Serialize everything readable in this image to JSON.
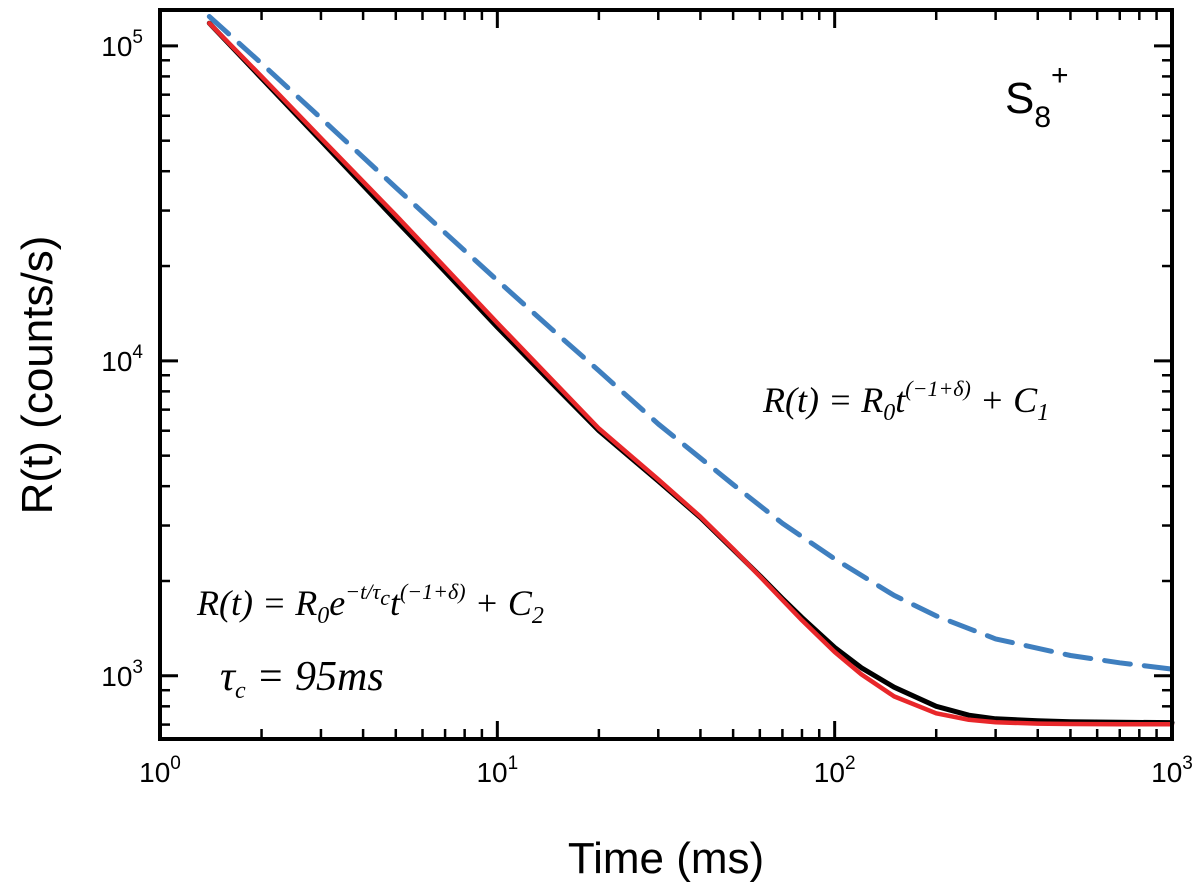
{
  "chart_data": {
    "type": "line",
    "x_scale": "log",
    "y_scale": "log",
    "xlim": [
      1,
      1000
    ],
    "ylim": [
      630,
      130000
    ],
    "xlabel": "Time (ms)",
    "ylabel": "R(t) (counts/s)",
    "x_ticks": [
      {
        "base": "10",
        "exp": "0",
        "value": 1
      },
      {
        "base": "10",
        "exp": "1",
        "value": 10
      },
      {
        "base": "10",
        "exp": "2",
        "value": 100
      },
      {
        "base": "10",
        "exp": "3",
        "value": 1000
      }
    ],
    "y_ticks": [
      {
        "base": "10",
        "exp": "3",
        "value": 1000
      },
      {
        "base": "10",
        "exp": "4",
        "value": 10000
      },
      {
        "base": "10",
        "exp": "5",
        "value": 100000
      }
    ],
    "species_label": {
      "main": "S",
      "sub": "8",
      "sup": "+"
    },
    "series": [
      {
        "kind": "measured",
        "color": "#000000",
        "x": [
          1.4,
          2,
          3,
          5,
          7,
          10,
          15,
          20,
          30,
          40,
          50,
          60,
          70,
          80,
          100,
          120,
          150,
          200,
          250,
          300,
          400,
          500,
          700,
          1000
        ],
        "y": [
          118000,
          79000,
          50000,
          28000,
          19200,
          12800,
          8200,
          6000,
          4150,
          3180,
          2520,
          2080,
          1760,
          1530,
          1230,
          1060,
          920,
          800,
          750,
          730,
          720,
          715,
          712,
          710
        ]
      },
      {
        "kind": "fit",
        "color": "#e8272a",
        "x": [
          1.4,
          2,
          3,
          5,
          7,
          10,
          15,
          20,
          30,
          40,
          50,
          60,
          70,
          80,
          100,
          120,
          150,
          200,
          250,
          300,
          400,
          500,
          700,
          1000
        ],
        "y": [
          118000,
          80000,
          51000,
          29000,
          19800,
          13200,
          8400,
          6100,
          4200,
          3200,
          2530,
          2070,
          1740,
          1500,
          1190,
          1010,
          860,
          760,
          725,
          712,
          705,
          703,
          702,
          702
        ]
      },
      {
        "kind": "power-law",
        "color": "#3f7fbf",
        "x": [
          1.4,
          2,
          3,
          5,
          7,
          10,
          15,
          20,
          30,
          50,
          70,
          100,
          150,
          200,
          300,
          500,
          700,
          1000
        ],
        "y": [
          124000,
          88000,
          59000,
          35500,
          25500,
          18000,
          12200,
          9300,
          6300,
          4050,
          3050,
          2350,
          1800,
          1550,
          1310,
          1160,
          1100,
          1050
        ]
      }
    ],
    "annotations": {
      "eq1": {
        "lhs": "R(t) = R",
        "r_sub": "0",
        "t": "t",
        "exponent": "(−1+δ)",
        "plus": " + C",
        "c_sub": "1"
      },
      "eq2": {
        "lhs": "R(t) = R",
        "r_sub": "0",
        "e": "e",
        "e_sup": "−t/τ",
        "e_sup_sub": "c",
        "t": "t",
        "exponent": "(−1+δ)",
        "plus": " + C",
        "c_sub": "2"
      },
      "tau": {
        "sym": "τ",
        "sub": "c",
        "rest": " = 95ms"
      }
    }
  }
}
